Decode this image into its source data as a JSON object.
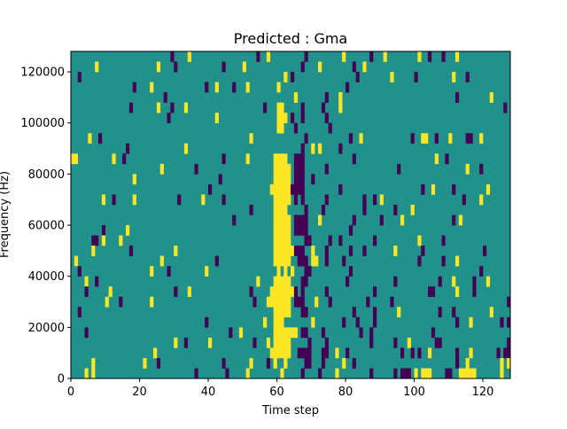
{
  "chart_data": {
    "type": "heatmap",
    "title": "Predicted : Gma",
    "xlabel": "Time step",
    "ylabel": "Frequency (Hz)",
    "xlim": [
      0,
      128
    ],
    "ylim": [
      0,
      128000
    ],
    "n_cols": 128,
    "n_rows": 32,
    "row_height_hz": 4000,
    "xticks": [
      0,
      20,
      40,
      60,
      80,
      100,
      120
    ],
    "xtick_labels": [
      "0",
      "20",
      "40",
      "60",
      "80",
      "100",
      "120"
    ],
    "yticks": [
      0,
      20000,
      40000,
      60000,
      80000,
      100000,
      120000
    ],
    "ytick_labels": [
      "0",
      "20000",
      "40000",
      "60000",
      "80000",
      "100000",
      "120000"
    ],
    "colors": {
      "background": "#21918c",
      "y": "#fde725",
      "p": "#440154"
    },
    "row_order": "top-to-bottom (row 0 = 124000-128000 Hz)",
    "rows": [
      {
        "y": [
          34,
          57,
          79,
          91,
          101,
          112
        ],
        "p": [
          29,
          54,
          68,
          87,
          104,
          108
        ]
      },
      {
        "y": [
          7,
          25,
          50,
          72,
          85
        ],
        "p": [
          30,
          44,
          67,
          82
        ]
      },
      {
        "y": [
          62,
          93,
          111
        ],
        "p": [
          2,
          64,
          83,
          100,
          115
        ]
      },
      {
        "y": [
          23,
          42,
          51,
          60
        ],
        "p": [
          18,
          39,
          47,
          80
        ]
      },
      {
        "y": [
          65,
          78,
          122
        ],
        "p": [
          27,
          74,
          112
        ]
      },
      {
        "y": [
          25,
          33,
          60,
          61,
          78
        ],
        "p": [
          17,
          29,
          56,
          67,
          73,
          126
        ]
      },
      {
        "y": [
          42,
          60,
          61,
          62
        ],
        "p": [
          28,
          64,
          67,
          74
        ]
      },
      {
        "y": [
          60,
          61
        ],
        "p": [
          65,
          75
        ]
      },
      {
        "y": [
          5,
          52,
          84,
          102,
          103,
          110,
          119
        ],
        "p": [
          8,
          68,
          81,
          99,
          106,
          115,
          116
        ]
      },
      {
        "y": [
          33,
          70,
          72
        ],
        "p": [
          16,
          67,
          78
        ]
      },
      {
        "y": [
          0,
          1,
          12,
          51,
          59,
          60,
          61,
          62,
          106
        ],
        "p": [
          15,
          44,
          65,
          66,
          67,
          82,
          109
        ]
      },
      {
        "y": [
          26,
          59,
          60,
          61,
          62,
          63,
          115
        ],
        "p": [
          36,
          65,
          66,
          67,
          74,
          95,
          119
        ]
      },
      {
        "y": [
          18,
          59,
          60,
          61,
          62,
          63
        ],
        "p": [
          43,
          65,
          66,
          67,
          70
        ]
      },
      {
        "y": [
          58,
          59,
          60,
          61,
          62,
          63,
          105,
          121
        ],
        "p": [
          40,
          64,
          65,
          66,
          67,
          78,
          102,
          111
        ]
      },
      {
        "y": [
          9,
          18,
          38,
          59,
          60,
          61,
          62,
          63,
          90,
          119
        ],
        "p": [
          12,
          31,
          44,
          65,
          67,
          74,
          85,
          88,
          114
        ]
      },
      {
        "y": [
          59,
          60,
          61,
          62,
          99
        ],
        "p": [
          52,
          68,
          73,
          85,
          94
        ]
      },
      {
        "y": [
          59,
          60,
          61,
          62,
          63,
          72,
          96,
          113
        ],
        "p": [
          47,
          65,
          66,
          67,
          68,
          82,
          90,
          111
        ]
      },
      {
        "y": [
          16,
          59,
          60,
          61,
          62,
          63
        ],
        "p": [
          9,
          65,
          66,
          67,
          68,
          81
        ]
      },
      {
        "y": [
          9,
          14,
          59,
          60,
          61,
          62,
          63,
          101
        ],
        "p": [
          6,
          7,
          68,
          69,
          75,
          78,
          88,
          108
        ]
      },
      {
        "y": [
          6,
          30,
          59,
          60,
          61,
          62,
          63,
          64,
          70,
          94
        ],
        "p": [
          17,
          65,
          66,
          67,
          74,
          81,
          85,
          102,
          120
        ]
      },
      {
        "y": [
          1,
          26,
          59,
          60,
          61,
          62,
          63,
          70,
          71,
          112
        ],
        "p": [
          42,
          66,
          67,
          68,
          74,
          79,
          101,
          108
        ]
      },
      {
        "y": [
          23,
          39,
          60,
          62,
          64
        ],
        "p": [
          2,
          28,
          68,
          69,
          81,
          119
        ]
      },
      {
        "y": [
          4,
          54,
          59,
          60,
          61,
          62,
          63,
          111,
          121
        ],
        "p": [
          7,
          67,
          68,
          80,
          94,
          107,
          117
        ]
      },
      {
        "y": [
          11,
          34,
          58,
          59,
          60,
          61,
          62,
          63,
          64,
          112
        ],
        "p": [
          4,
          30,
          52,
          65,
          67,
          74,
          88,
          104,
          105,
          117
        ]
      },
      {
        "y": [
          10,
          23,
          57,
          58,
          59,
          60,
          61,
          62,
          63,
          71
        ],
        "p": [
          14,
          53,
          65,
          66,
          67,
          75,
          86,
          93,
          127
        ]
      },
      {
        "y": [
          59,
          60,
          61,
          62,
          63,
          95,
          122
        ],
        "p": [
          2,
          67,
          68,
          82,
          88,
          107,
          111
        ]
      },
      {
        "y": [
          56,
          59,
          60,
          61,
          70,
          116
        ],
        "p": [
          39,
          79,
          83,
          88,
          112,
          125,
          127
        ]
      },
      {
        "y": [
          49,
          59,
          60,
          61,
          62,
          63,
          64,
          65
        ],
        "p": [
          4,
          46,
          67,
          68,
          73,
          84,
          87,
          105
        ]
      },
      {
        "y": [
          30,
          40,
          57,
          59,
          60,
          61,
          62,
          63,
          98
        ],
        "p": [
          33,
          53,
          69,
          74,
          87,
          94,
          106,
          107,
          127
        ]
      },
      {
        "y": [
          24,
          58,
          59,
          60,
          61,
          62,
          63,
          77,
          104,
          116
        ],
        "p": [
          66,
          67,
          68,
          69,
          73,
          74,
          80,
          96,
          99,
          101,
          112,
          124,
          126,
          127
        ]
      },
      {
        "y": [
          6,
          21,
          52,
          59,
          62,
          79,
          115,
          125,
          127
        ],
        "p": [
          25,
          44,
          57,
          68,
          69,
          73,
          82,
          112
        ]
      },
      {
        "y": [
          4,
          6,
          51,
          61,
          77,
          100,
          102,
          103,
          104,
          113,
          114,
          115,
          116,
          117,
          125
        ],
        "p": [
          36,
          45,
          67,
          72,
          87,
          94,
          96,
          97,
          98,
          109,
          110
        ]
      }
    ]
  }
}
